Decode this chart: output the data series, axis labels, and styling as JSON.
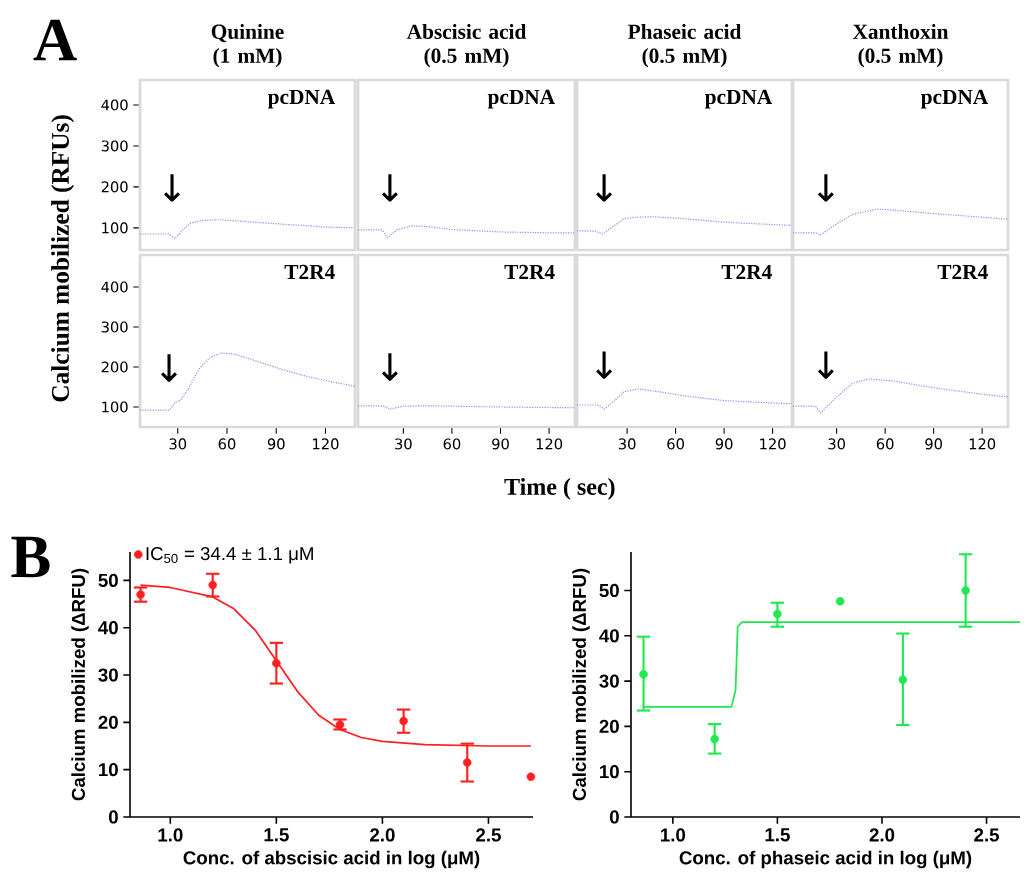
{
  "chart_data": [
    {
      "type": "line",
      "title": "Quinine (1 mM)",
      "subtitle": "pcDNA",
      "xlim": [
        7,
        138
      ],
      "ylim": [
        46,
        461
      ],
      "yticks": [
        100,
        200,
        300,
        400
      ],
      "tick_labels": "y",
      "annotations": [
        "A",
        "↓"
      ],
      "series": [
        {
          "color": "#8c8cf0",
          "line_style": "dotted",
          "x": [
            7,
            20,
            25,
            28,
            33,
            38,
            45,
            55,
            70,
            90,
            110,
            120,
            137
          ],
          "values": [
            85,
            85,
            85,
            73,
            95,
            112,
            118,
            120,
            116,
            110,
            105,
            102,
            100
          ]
        }
      ]
    },
    {
      "type": "line",
      "title": "Abscisic acid (0.5 mM)",
      "subtitle": "pcDNA",
      "xlim": [
        2,
        136
      ],
      "ylim": [
        46,
        461
      ],
      "tick_labels": false,
      "annotations": [
        "↓"
      ],
      "series": [
        {
          "color": "#8c8cf0",
          "line_style": "dotted",
          "x": [
            2,
            17,
            20,
            26,
            35,
            45,
            60,
            90,
            120,
            136
          ],
          "values": [
            95,
            95,
            76,
            95,
            105,
            103,
            96,
            90,
            88,
            88
          ]
        }
      ]
    },
    {
      "type": "line",
      "title": "Phaseic acid (0.5 mM)",
      "subtitle": "pcDNA",
      "xlim": [
        -1,
        132
      ],
      "ylim": [
        46,
        461
      ],
      "tick_labels": false,
      "annotations": [
        "↓"
      ],
      "series": [
        {
          "color": "#8c8cf0",
          "line_style": "dotted",
          "x": [
            -1,
            10,
            15,
            22,
            28,
            35,
            46,
            60,
            90,
            120,
            132
          ],
          "values": [
            93,
            92,
            85,
            105,
            122,
            126,
            127,
            124,
            114,
            108,
            106
          ]
        }
      ]
    },
    {
      "type": "line",
      "title": "Xanthoxin (0.5 mM)",
      "subtitle": "pcDNA",
      "xlim": [
        3,
        136
      ],
      "ylim": [
        46,
        461
      ],
      "tick_labels": false,
      "annotations": [
        "↓"
      ],
      "series": [
        {
          "color": "#8c8cf0",
          "line_style": "dotted",
          "x": [
            3,
            17,
            20,
            30,
            40,
            55,
            75,
            90,
            120,
            136
          ],
          "values": [
            88,
            88,
            83,
            110,
            133,
            146,
            140,
            135,
            126,
            121
          ]
        }
      ]
    },
    {
      "type": "line",
      "subtitle": "T2R4",
      "ylabel": "Calcium mobilized (RFUs)",
      "xlim": [
        7,
        138
      ],
      "ylim": [
        50,
        480
      ],
      "xticks": [
        30,
        60,
        90,
        120
      ],
      "yticks": [
        100,
        200,
        300,
        400
      ],
      "annotations": [
        "↓"
      ],
      "series": [
        {
          "color": "#8c8cf0",
          "line_style": "dotted",
          "x": [
            7,
            25,
            28,
            32,
            37,
            43,
            50,
            57,
            65,
            80,
            95,
            110,
            125,
            138
          ],
          "values": [
            92,
            92,
            110,
            118,
            150,
            195,
            225,
            235,
            232,
            212,
            192,
            175,
            162,
            152
          ]
        }
      ]
    },
    {
      "type": "line",
      "subtitle": "T2R4",
      "xlabel": "Time ( sec)",
      "xlim": [
        2,
        136
      ],
      "ylim": [
        50,
        480
      ],
      "xticks": [
        30,
        60,
        90,
        120
      ],
      "tick_labels": "x",
      "annotations": [
        "↓"
      ],
      "series": [
        {
          "color": "#8c8cf0",
          "line_style": "dotted",
          "x": [
            2,
            17,
            22,
            30,
            45,
            90,
            136
          ],
          "values": [
            103,
            103,
            95,
            102,
            103,
            100,
            98
          ]
        }
      ]
    },
    {
      "type": "line",
      "subtitle": "T2R4",
      "xlim": [
        -1,
        132
      ],
      "ylim": [
        50,
        480
      ],
      "xticks": [
        30,
        60,
        90,
        120
      ],
      "tick_labels": "x",
      "annotations": [
        "↓"
      ],
      "series": [
        {
          "color": "#8c8cf0",
          "line_style": "dotted",
          "x": [
            -1,
            12,
            16,
            22,
            28,
            37,
            50,
            65,
            90,
            120,
            132
          ],
          "values": [
            105,
            105,
            95,
            115,
            138,
            145,
            138,
            128,
            116,
            110,
            108
          ]
        }
      ]
    },
    {
      "type": "line",
      "subtitle": "T2R4",
      "xlim": [
        3,
        136
      ],
      "ylim": [
        50,
        480
      ],
      "xticks": [
        30,
        60,
        90,
        120
      ],
      "tick_labels": "x",
      "annotations": [
        "↓"
      ],
      "series": [
        {
          "color": "#8c8cf0",
          "line_style": "dotted",
          "x": [
            3,
            17,
            20,
            30,
            40,
            50,
            65,
            90,
            120,
            136
          ],
          "values": [
            102,
            102,
            85,
            125,
            160,
            170,
            165,
            148,
            132,
            125
          ]
        }
      ]
    },
    {
      "type": "scatter",
      "xlabel": "Conc. of abscisic acid in log (μM)",
      "ylabel": "Calcium mobilized (ΔRFU)",
      "xlim": [
        0.81,
        2.71
      ],
      "ylim": [
        0,
        56
      ],
      "legend": "top left",
      "annotations": [
        "B"
      ],
      "xticks": [
        {
          "value": 1,
          "label": "1.0"
        },
        {
          "value": 1.5,
          "label": "1.5"
        },
        {
          "value": 2,
          "label": "2.0"
        },
        {
          "value": 2.5,
          "label": "2.5"
        }
      ],
      "yticks": [
        0,
        10,
        20,
        30,
        40,
        50
      ],
      "series": [
        {
          "name": "IC$_{50}$ = 34.4 ± 1.1 μM",
          "type": "scatter",
          "marker": "circle",
          "color": "#ff2020",
          "x": [
            0.86,
            1.2,
            1.5,
            1.8,
            2.1,
            2.4,
            2.7
          ],
          "values": [
            47,
            49,
            32.5,
            19.5,
            20.3,
            11.5,
            8.5
          ],
          "errors": [
            [
              45.5,
              48.5
            ],
            [
              46.6,
              51.4
            ],
            [
              28.2,
              36.8
            ],
            [
              18.5,
              20.6
            ],
            [
              17.8,
              22.7
            ],
            [
              7.5,
              15.5
            ],
            null
          ]
        },
        {
          "type": "line",
          "color": "#ff2020",
          "x": [
            0.86,
            1.0,
            1.2,
            1.3,
            1.4,
            1.5,
            1.6,
            1.7,
            1.8,
            1.9,
            2.0,
            2.2,
            2.5,
            2.7
          ],
          "values": [
            49,
            48.5,
            46.5,
            44,
            39.5,
            33,
            26.5,
            21.5,
            18.5,
            16.8,
            16,
            15.3,
            15,
            15
          ]
        }
      ]
    },
    {
      "type": "scatter",
      "xlabel": "Conc. of phaseic acid in log (μM)",
      "ylabel": "Calcium mobilized (ΔRFU)",
      "xlim": [
        0.8,
        2.66
      ],
      "ylim": [
        0,
        58.5
      ],
      "xticks": [
        {
          "value": 1,
          "label": "1.0"
        },
        {
          "value": 1.5,
          "label": "1.5"
        },
        {
          "value": 2,
          "label": "2.0"
        },
        {
          "value": 2.5,
          "label": "2.5"
        }
      ],
      "yticks": [
        0,
        10,
        20,
        30,
        40,
        50
      ],
      "series": [
        {
          "type": "scatter",
          "marker": "circle",
          "color": "#20e850",
          "x": [
            0.86,
            1.2,
            1.5,
            1.8,
            2.1,
            2.4
          ],
          "values": [
            31.5,
            17.2,
            44.8,
            47.6,
            30.3,
            50
          ],
          "errors": [
            [
              23.5,
              39.8
            ],
            [
              14,
              20.5
            ],
            [
              42,
              47.3
            ],
            null,
            [
              20.3,
              40.5
            ],
            [
              42,
              58
            ]
          ]
        },
        {
          "type": "line",
          "color": "#20e850",
          "x": [
            0.86,
            1.28,
            1.3,
            1.31,
            1.33,
            2.66
          ],
          "values": [
            24.3,
            24.3,
            28,
            42,
            43,
            43
          ]
        }
      ]
    }
  ]
}
